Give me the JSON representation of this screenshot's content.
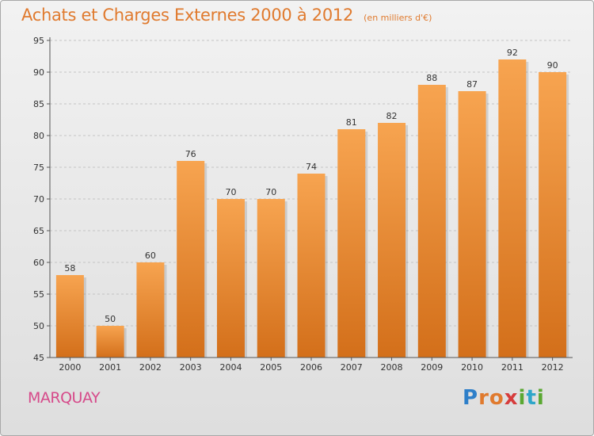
{
  "title": "Achats et Charges Externes 2000 à 2012",
  "title_unit": "(en milliers d'€)",
  "place": "MARQUAY",
  "logo": {
    "letters": [
      {
        "ch": "P",
        "color": "#2e7fc9"
      },
      {
        "ch": "r",
        "color": "#e07a2e"
      },
      {
        "ch": "o",
        "color": "#e07a2e"
      },
      {
        "ch": "x",
        "color": "#d63c3c"
      },
      {
        "ch": "i",
        "color": "#5aa832"
      },
      {
        "ch": "t",
        "color": "#2ea6c9"
      },
      {
        "ch": "i",
        "color": "#5aa832"
      }
    ]
  },
  "colors": {
    "bar_top": "#f7a450",
    "bar_bottom": "#d36f1a",
    "title": "#e07a2e",
    "place": "#d64a8a"
  },
  "chart_data": {
    "type": "bar",
    "categories": [
      "2000",
      "2001",
      "2002",
      "2003",
      "2004",
      "2005",
      "2006",
      "2007",
      "2008",
      "2009",
      "2010",
      "2011",
      "2012"
    ],
    "values": [
      58,
      50,
      60,
      76,
      70,
      70,
      74,
      81,
      82,
      88,
      87,
      92,
      90
    ],
    "ylim": [
      45,
      95
    ],
    "yticks": [
      45,
      50,
      55,
      60,
      65,
      70,
      75,
      80,
      85,
      90,
      95
    ],
    "grid": "horizontal dashed"
  }
}
